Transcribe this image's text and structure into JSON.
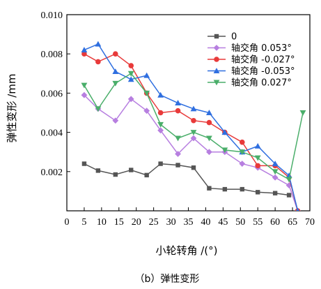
{
  "chart_data": {
    "type": "line",
    "title": "",
    "caption": "（b）弹性变形",
    "xlabel": "小轮转角 /(°)",
    "ylabel": "弹性变形 /mm",
    "xlim": [
      0,
      70
    ],
    "ylim": [
      0,
      0.01
    ],
    "x_ticks": [
      "0",
      "5",
      "10",
      "15",
      "20",
      "25",
      "30",
      "35",
      "40",
      "45",
      "50",
      "55",
      "60",
      "65",
      "70"
    ],
    "y_ticks": [
      "0.002",
      "0.004",
      "0.006",
      "0.008",
      "0.010"
    ],
    "grid": false,
    "legend_position": "top-right",
    "series": [
      {
        "name": "0",
        "color": "#555555",
        "marker": "square",
        "x": [
          5,
          9,
          14,
          18.5,
          23,
          27,
          32,
          36.5,
          41,
          45.5,
          50.5,
          55,
          60,
          64
        ],
        "y": [
          0.0024,
          0.00205,
          0.00185,
          0.00208,
          0.00182,
          0.0024,
          0.00233,
          0.0022,
          0.00115,
          0.0011,
          0.0011,
          0.00095,
          0.0009,
          0.0008
        ]
      },
      {
        "name": "轴交角 0.053°",
        "color": "#b77fe0",
        "marker": "diamond",
        "x": [
          5,
          9,
          14,
          18.5,
          23,
          27,
          32,
          36.5,
          41,
          45.5,
          50.5,
          55,
          60,
          64,
          66.5
        ],
        "y": [
          0.0059,
          0.0052,
          0.0046,
          0.0057,
          0.0051,
          0.0041,
          0.0029,
          0.0037,
          0.003,
          0.003,
          0.0024,
          0.0022,
          0.0017,
          0.0013,
          0.0
        ]
      },
      {
        "name": "轴交角 -0.027°",
        "color": "#e83a3a",
        "marker": "circle",
        "x": [
          5,
          9,
          14,
          18.5,
          23,
          27,
          32,
          36.5,
          41,
          45.5,
          50.5,
          55,
          60,
          64,
          66.5
        ],
        "y": [
          0.008,
          0.0076,
          0.008,
          0.0074,
          0.006,
          0.005,
          0.0051,
          0.0046,
          0.0045,
          0.004,
          0.0035,
          0.0023,
          0.0023,
          0.0017,
          0.0
        ]
      },
      {
        "name": "轴交角 -0.053°",
        "color": "#2f6fe0",
        "marker": "triangle-up",
        "x": [
          5,
          9,
          14,
          18.5,
          23,
          27,
          32,
          36.5,
          41,
          45.5,
          50.5,
          55,
          60,
          64,
          66.5
        ],
        "y": [
          0.0082,
          0.0085,
          0.0071,
          0.0067,
          0.0069,
          0.0059,
          0.0055,
          0.0052,
          0.005,
          0.004,
          0.003,
          0.0033,
          0.0024,
          0.0018,
          0.0
        ]
      },
      {
        "name": "轴交角 0.027°",
        "color": "#4aae6a",
        "marker": "triangle-down",
        "x": [
          5,
          9,
          14,
          18.5,
          23,
          27,
          32,
          36.5,
          41,
          45.5,
          50.5,
          55,
          60,
          64,
          68
        ],
        "y": [
          0.0064,
          0.0052,
          0.0065,
          0.007,
          0.006,
          0.0044,
          0.0037,
          0.004,
          0.0037,
          0.0031,
          0.003,
          0.0027,
          0.002,
          0.0016,
          0.005
        ]
      }
    ]
  }
}
